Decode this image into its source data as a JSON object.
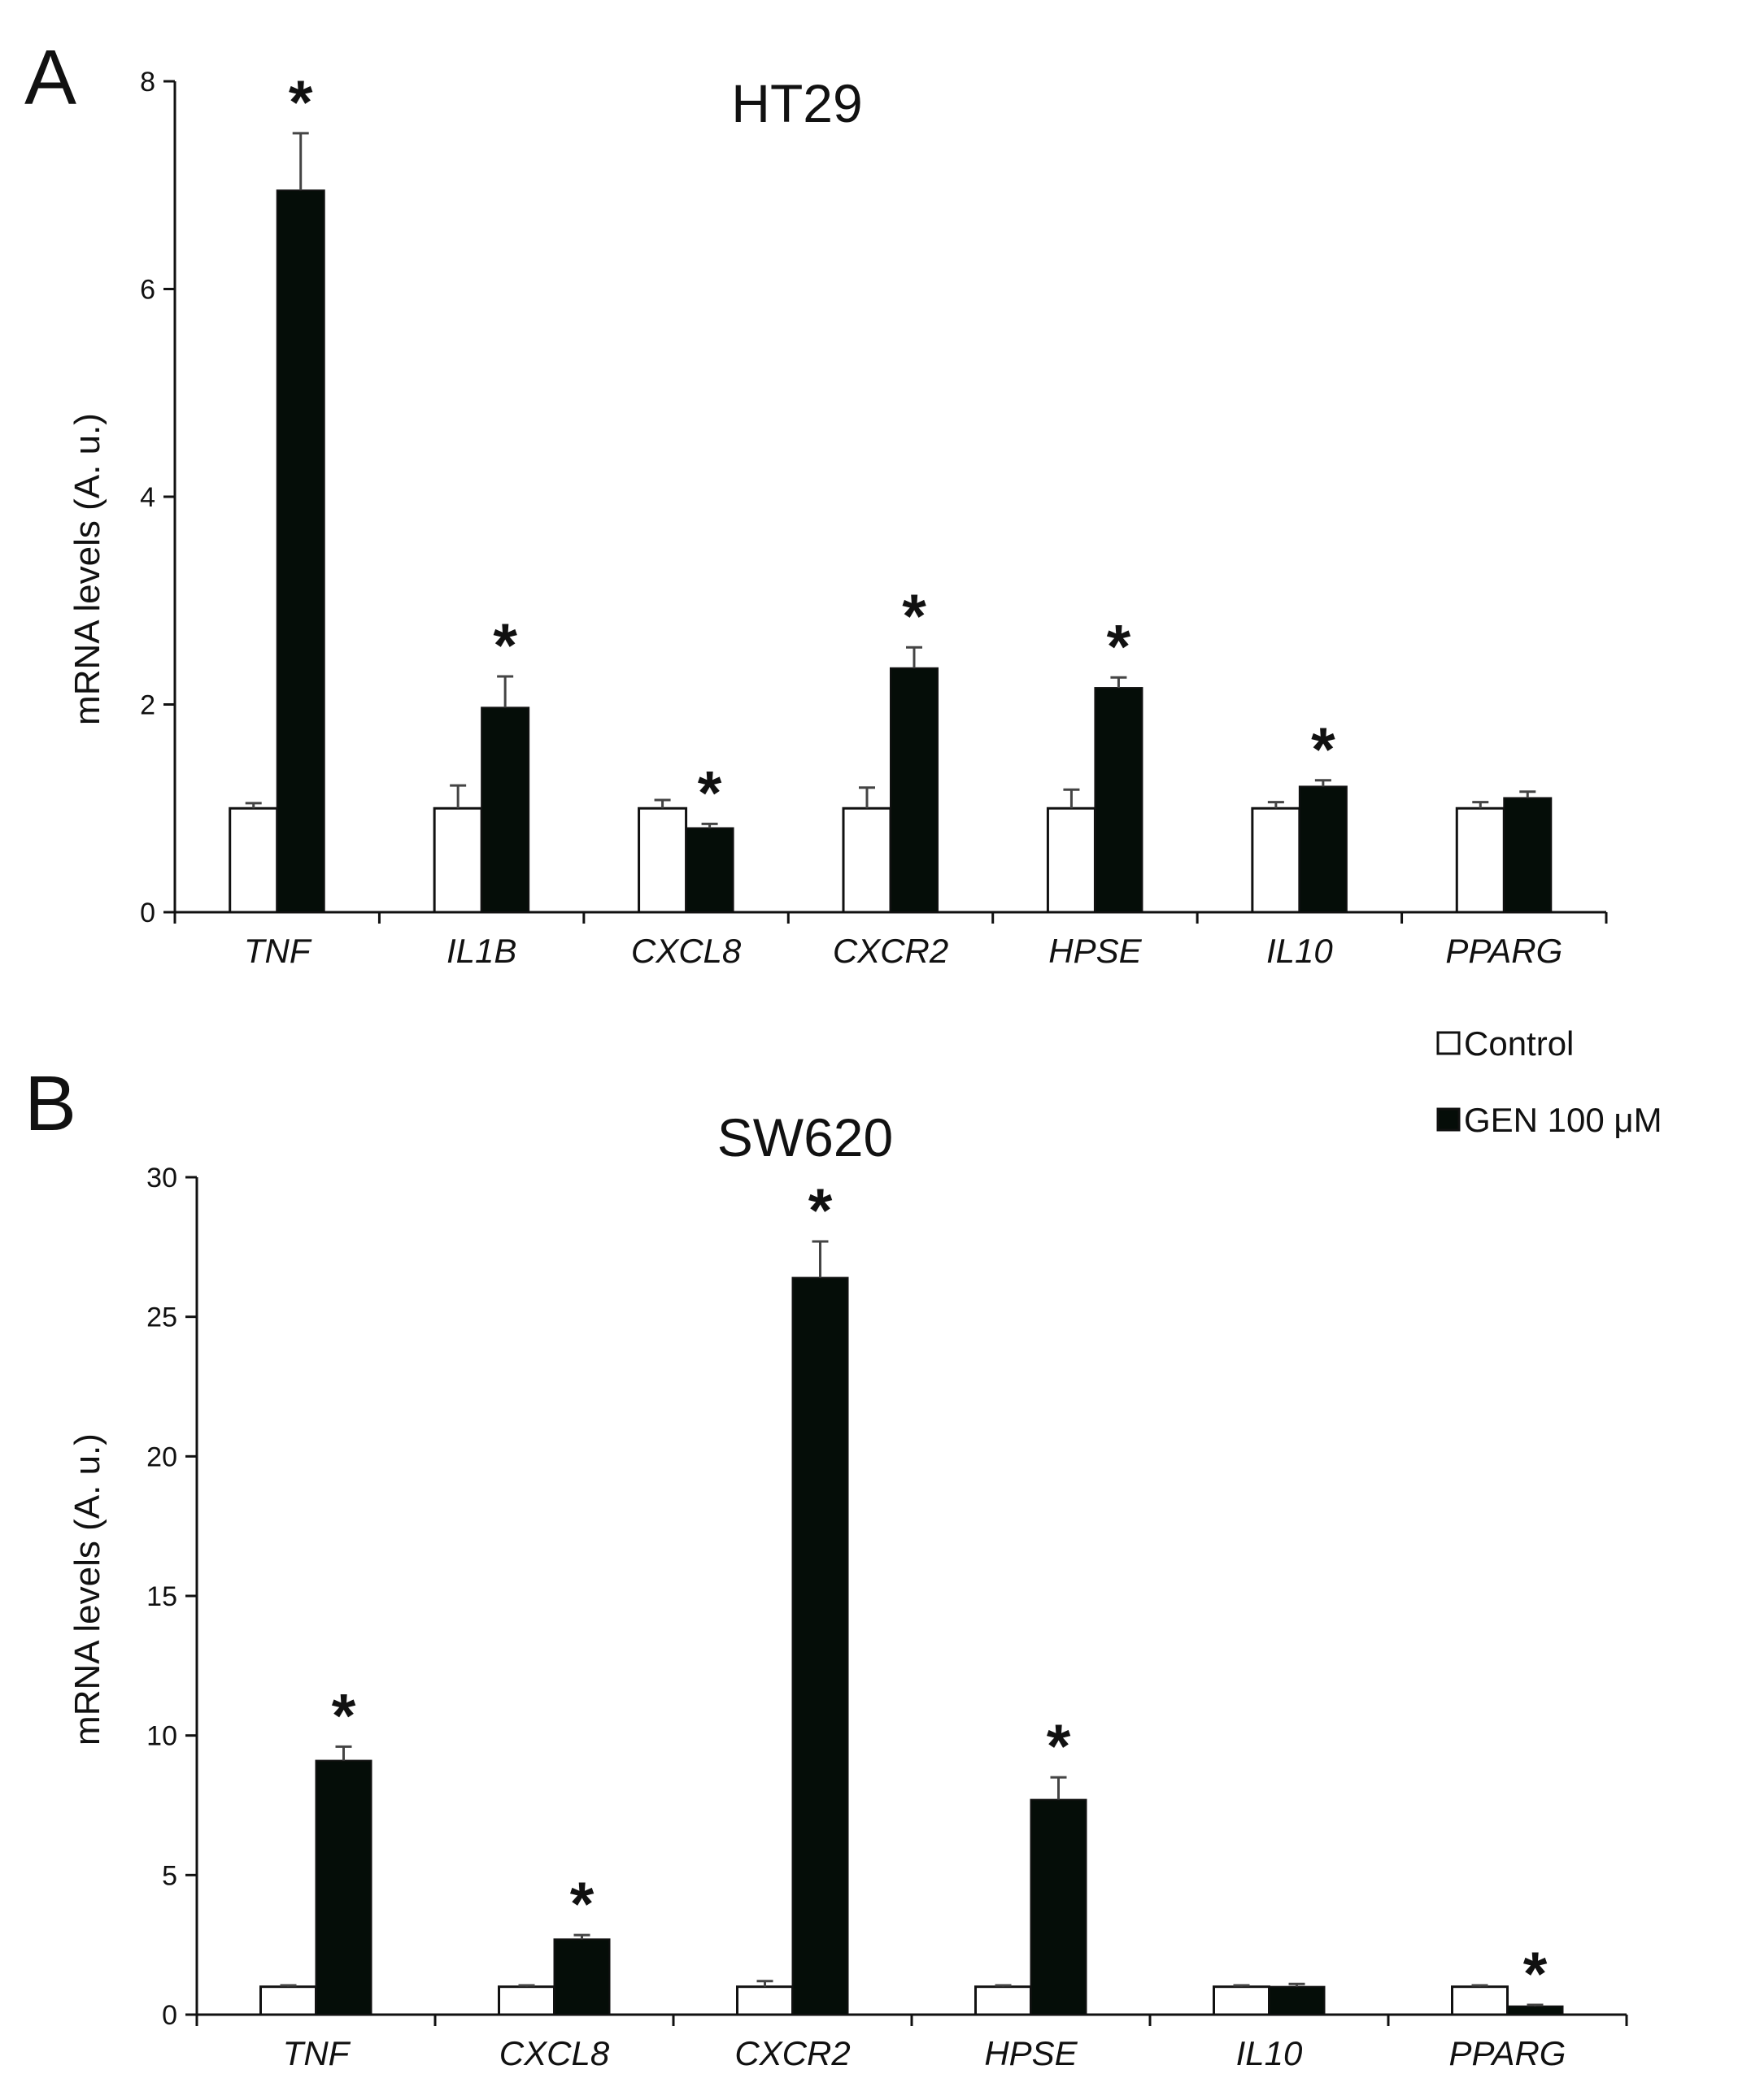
{
  "legend": {
    "control": "Control",
    "treated": "GEN 100 μM"
  },
  "colors": {
    "control": "#ffffff",
    "treated": "#050d08",
    "axis": "#111111",
    "error": "#444444"
  },
  "chart_data": [
    {
      "type": "bar",
      "panel": "A",
      "title": "HT29",
      "ylabel": "mRNA levels (A. u.)",
      "xlabel": "",
      "ylim": [
        0,
        8
      ],
      "yticks": [
        0,
        2,
        4,
        6,
        8
      ],
      "categories": [
        "TNF",
        "IL1B",
        "CXCL8",
        "CXCR2",
        "HPSE",
        "IL10",
        "PPARG"
      ],
      "series": [
        {
          "name": "Control",
          "values": [
            1.0,
            1.0,
            1.0,
            1.0,
            1.0,
            1.0,
            1.0
          ],
          "errors": [
            0.05,
            0.22,
            0.08,
            0.2,
            0.18,
            0.06,
            0.06
          ]
        },
        {
          "name": "GEN 100 μM",
          "values": [
            6.95,
            1.97,
            0.81,
            2.35,
            2.16,
            1.21,
            1.1
          ],
          "errors": [
            0.55,
            0.3,
            0.04,
            0.2,
            0.1,
            0.06,
            0.06
          ]
        }
      ],
      "significance": [
        "*",
        "*",
        "*",
        "*",
        "*",
        "*",
        ""
      ]
    },
    {
      "type": "bar",
      "panel": "B",
      "title": "SW620",
      "ylabel": "mRNA levels (A. u.)",
      "xlabel": "",
      "ylim": [
        0,
        30
      ],
      "yticks": [
        0,
        5,
        10,
        15,
        20,
        25,
        30
      ],
      "categories": [
        "TNF",
        "CXCL8",
        "CXCR2",
        "HPSE",
        "IL10",
        "PPARG"
      ],
      "series": [
        {
          "name": "Control",
          "values": [
            1.0,
            1.0,
            1.0,
            1.0,
            1.0,
            1.0
          ],
          "errors": [
            0.05,
            0.05,
            0.2,
            0.05,
            0.05,
            0.05
          ]
        },
        {
          "name": "GEN 100 μM",
          "values": [
            9.1,
            2.7,
            26.4,
            7.7,
            1.0,
            0.3
          ],
          "errors": [
            0.5,
            0.15,
            1.3,
            0.8,
            0.1,
            0.05
          ]
        }
      ],
      "significance": [
        "*",
        "*",
        "*",
        "*",
        "",
        "*"
      ]
    }
  ]
}
